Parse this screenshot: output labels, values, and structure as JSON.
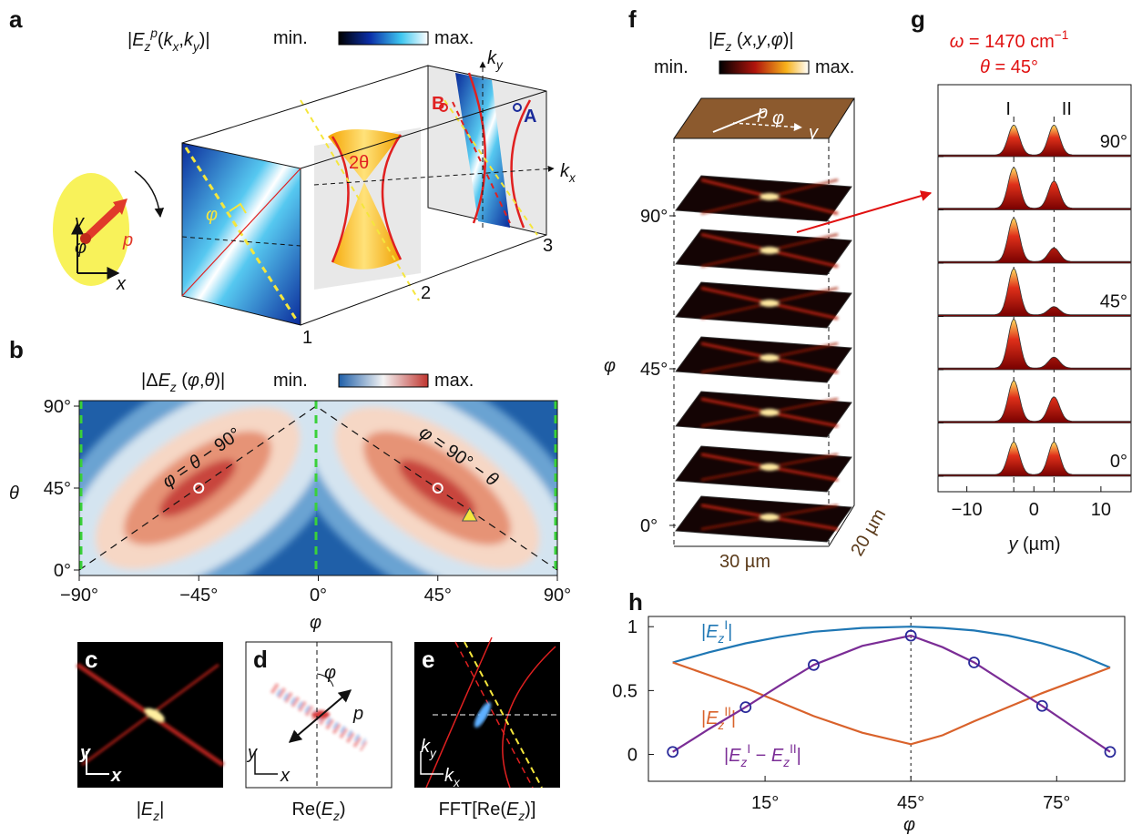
{
  "panels": {
    "a": {
      "label": "a",
      "title": [
        {
          "t": "|"
        },
        {
          "t": "E",
          "italic": true
        },
        {
          "t": "z",
          "sub": true,
          "italic": true
        },
        {
          "t": "p",
          "sup": true,
          "italic": true
        },
        {
          "t": "("
        },
        {
          "t": "k",
          "italic": true
        },
        {
          "t": "x",
          "sub": true,
          "italic": true
        },
        {
          "t": ","
        },
        {
          "t": "k",
          "italic": true
        },
        {
          "t": "y",
          "sub": true,
          "italic": true
        },
        {
          "t": ")|"
        }
      ],
      "colorbar_min": "min.",
      "colorbar_max": "max.",
      "ky": [
        {
          "t": "k",
          "italic": true
        },
        {
          "t": "y",
          "sub": true,
          "italic": true
        }
      ],
      "kx": [
        {
          "t": "k",
          "italic": true
        },
        {
          "t": "x",
          "sub": true,
          "italic": true
        }
      ],
      "two_theta": "2θ",
      "phi": "φ",
      "point_B": "B",
      "point_A": "A",
      "dipole": "p",
      "axis_x": "x",
      "axis_y": "y",
      "axis_phi": "φ",
      "planes": [
        "1",
        "2",
        "3"
      ]
    },
    "b": {
      "type": "heatmap",
      "label": "b",
      "title": [
        {
          "t": "|Δ"
        },
        {
          "t": "E",
          "italic": true
        },
        {
          "t": "z",
          "sub": true,
          "italic": true
        },
        {
          "t": " ("
        },
        {
          "t": "φ",
          "italic": true
        },
        {
          "t": ","
        },
        {
          "t": "θ",
          "italic": true
        },
        {
          "t": ")|"
        }
      ],
      "colorbar_min": "min.",
      "colorbar_max": "max.",
      "xlabel": "φ",
      "ylabel": "θ",
      "xlim": [
        -90,
        90
      ],
      "ylim": [
        -3,
        93
      ],
      "xticks": [
        {
          "value": -90,
          "label": "−90°"
        },
        {
          "value": -45,
          "label": "−45°"
        },
        {
          "value": 0,
          "label": "0°"
        },
        {
          "value": 45,
          "label": "45°"
        },
        {
          "value": 90,
          "label": "90°"
        }
      ],
      "yticks": [
        {
          "value": 0,
          "label": "0°"
        },
        {
          "value": 45,
          "label": "45°"
        },
        {
          "value": 90,
          "label": "90°"
        }
      ],
      "annotations": [
        [
          {
            "t": "φ",
            "italic": true
          },
          {
            "t": " = "
          },
          {
            "t": "θ",
            "italic": true
          },
          {
            "t": " − 90°"
          }
        ],
        [
          {
            "t": "φ",
            "italic": true
          },
          {
            "t": " = 90° − "
          },
          {
            "t": "θ",
            "italic": true
          }
        ]
      ],
      "circles": {
        "x": [
          -45,
          45
        ],
        "y": [
          45,
          45
        ]
      },
      "triangle": {
        "x": [
          57
        ],
        "y": [
          30
        ]
      }
    },
    "c": {
      "label": "c",
      "caption": [
        {
          "t": "|"
        },
        {
          "t": "E",
          "italic": true
        },
        {
          "t": "z",
          "sub": true,
          "italic": true
        },
        {
          "t": "|"
        }
      ],
      "axis_x": "x",
      "axis_y": "y"
    },
    "d": {
      "label": "d",
      "caption": [
        {
          "t": "Re("
        },
        {
          "t": "E",
          "italic": true
        },
        {
          "t": "z",
          "sub": true,
          "italic": true
        },
        {
          "t": ")"
        }
      ],
      "axis_x": "x",
      "axis_y": "y",
      "phi": "φ",
      "dipole": "p"
    },
    "e": {
      "label": "e",
      "caption": [
        {
          "t": "FFT[Re("
        },
        {
          "t": "E",
          "italic": true
        },
        {
          "t": "z",
          "sub": true,
          "italic": true
        },
        {
          "t": ")]"
        }
      ],
      "kx": [
        {
          "t": "k",
          "italic": true
        },
        {
          "t": "x",
          "sub": true,
          "italic": true
        }
      ],
      "ky": [
        {
          "t": "k",
          "italic": true
        },
        {
          "t": "y",
          "sub": true,
          "italic": true
        }
      ]
    },
    "f": {
      "label": "f",
      "title": [
        {
          "t": "|"
        },
        {
          "t": "E",
          "italic": true
        },
        {
          "t": "z",
          "sub": true,
          "italic": true
        },
        {
          "t": " ("
        },
        {
          "t": "x",
          "italic": true
        },
        {
          "t": ","
        },
        {
          "t": "y",
          "italic": true
        },
        {
          "t": ","
        },
        {
          "t": "φ",
          "italic": true
        },
        {
          "t": ")|"
        }
      ],
      "colorbar_min": "min.",
      "colorbar_max": "max.",
      "ylabel": "φ",
      "angle_labels": [
        "90°",
        "45°",
        "0°"
      ],
      "width_label": "30 µm",
      "depth_label": "20 µm",
      "plate_p": "p",
      "plate_phi": "φ",
      "plate_y": "y"
    },
    "g": {
      "type": "profiles",
      "label": "g",
      "conditions": [
        [
          {
            "t": "ω",
            "italic": true
          },
          {
            "t": " = 1470 cm"
          },
          {
            "t": "−1",
            "sup": true
          }
        ],
        [
          {
            "t": "θ",
            "italic": true
          },
          {
            "t": " = 45°"
          }
        ]
      ],
      "peak_names": [
        "I",
        "II"
      ],
      "peak_positions": [
        -3,
        3
      ],
      "xlim": [
        -14.3,
        14.5
      ],
      "xticks": [
        {
          "value": -10,
          "label": "−10"
        },
        0,
        10
      ],
      "xlabel": [
        {
          "t": "y",
          "italic": true
        },
        {
          "t": " (µm)"
        }
      ],
      "rows": [
        {
          "label": "90°",
          "peak_I": 0.55,
          "peak_II": 0.55
        },
        {
          "peak_I": 0.75,
          "peak_II": 0.5
        },
        {
          "peak_I": 0.8,
          "peak_II": 0.25
        },
        {
          "label": "45°",
          "peak_I": 0.85,
          "peak_II": 0.15
        },
        {
          "peak_I": 0.9,
          "peak_II": 0.2
        },
        {
          "peak_I": 0.75,
          "peak_II": 0.45
        },
        {
          "label": "0°",
          "peak_I": 0.6,
          "peak_II": 0.6
        }
      ]
    },
    "h": {
      "type": "line",
      "label": "h",
      "xlabel": "φ",
      "xlim": [
        -9,
        89
      ],
      "ylim": [
        -0.21,
        1.08
      ],
      "xticks": [
        {
          "value": 15,
          "label": "15°"
        },
        {
          "value": 45,
          "label": "45°"
        },
        {
          "value": 75,
          "label": "75°"
        }
      ],
      "yticks": [
        0,
        0.5,
        1
      ],
      "vline": 45,
      "x": [
        -4,
        3.5,
        11,
        18,
        25,
        35,
        45,
        51.5,
        58,
        65,
        72,
        79,
        86
      ],
      "series": [
        {
          "label": [
            {
              "t": "|"
            },
            {
              "t": "E",
              "italic": true
            },
            {
              "t": "z",
              "sub": true,
              "italic": true
            },
            {
              "t": "I",
              "sup": true
            },
            {
              "t": "|"
            }
          ],
          "color": "#1f77b4",
          "values": [
            0.72,
            0.8,
            0.87,
            0.92,
            0.96,
            0.99,
            1.0,
            0.99,
            0.97,
            0.93,
            0.87,
            0.79,
            0.68
          ]
        },
        {
          "label": [
            {
              "t": "|"
            },
            {
              "t": "E",
              "italic": true
            },
            {
              "t": "z",
              "sub": true,
              "italic": true
            },
            {
              "t": "II",
              "sup": true
            },
            {
              "t": "|"
            }
          ],
          "color": "#d9622b",
          "values": [
            0.72,
            0.62,
            0.52,
            0.41,
            0.3,
            0.17,
            0.08,
            0.15,
            0.26,
            0.37,
            0.48,
            0.58,
            0.68
          ]
        },
        {
          "label": [
            {
              "t": "|"
            },
            {
              "t": "E",
              "italic": true
            },
            {
              "t": "z",
              "sub": true,
              "italic": true
            },
            {
              "t": "I",
              "sup": true
            },
            {
              "t": " − "
            },
            {
              "t": "E",
              "italic": true
            },
            {
              "t": "z",
              "sub": true,
              "italic": true
            },
            {
              "t": "II",
              "sup": true
            },
            {
              "t": "|"
            }
          ],
          "color": "#7b2d96",
          "values": [
            0.02,
            0.2,
            0.37,
            0.54,
            0.7,
            0.85,
            0.93,
            0.84,
            0.72,
            0.55,
            0.38,
            0.2,
            0.02
          ]
        }
      ],
      "markers": {
        "color": "#2a2a9a",
        "x": [
          -4,
          11,
          25,
          45,
          58,
          72,
          86
        ],
        "values": [
          0.02,
          0.37,
          0.7,
          0.93,
          0.72,
          0.38,
          0.02
        ]
      }
    }
  }
}
